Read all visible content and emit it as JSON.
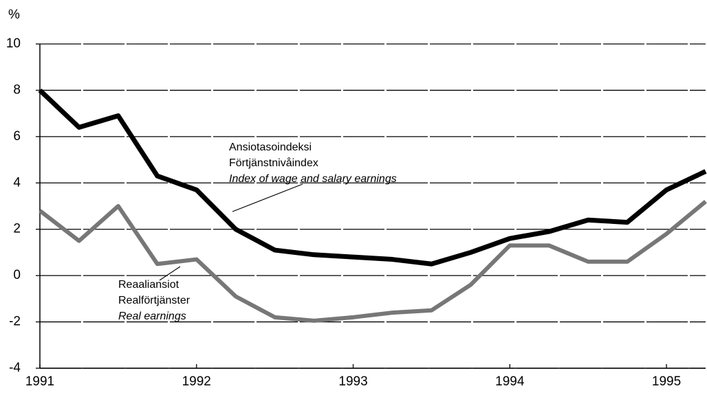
{
  "chart_data": {
    "type": "line",
    "y_label": "%",
    "x": [
      1991,
      1991.25,
      1991.5,
      1991.75,
      1992,
      1992.25,
      1992.5,
      1992.75,
      1993,
      1993.25,
      1993.5,
      1993.75,
      1994,
      1994.25,
      1994.5,
      1994.75,
      1995,
      1995.25
    ],
    "series": [
      {
        "name": [
          "Ansiotasoindeksi",
          "Förtjänstnivåindex",
          "Index of wage and salary earnings"
        ],
        "color": "#000000",
        "values": [
          8.0,
          6.4,
          6.9,
          4.3,
          3.7,
          2.0,
          1.1,
          0.9,
          0.8,
          0.7,
          0.5,
          1.0,
          1.6,
          1.9,
          2.4,
          2.3,
          3.7,
          4.5
        ]
      },
      {
        "name": [
          "Reaaliansiot",
          "Realförtjänster",
          "Real earnings"
        ],
        "color": "#777777",
        "values": [
          2.8,
          1.5,
          3.0,
          0.5,
          0.7,
          -0.9,
          -1.8,
          -1.95,
          -1.8,
          -1.6,
          -1.5,
          -0.4,
          1.3,
          1.3,
          0.6,
          0.6,
          1.8,
          3.2
        ]
      }
    ],
    "xlim": [
      1991,
      1995.25
    ],
    "xticks": [
      1991,
      1992,
      1993,
      1994,
      1995
    ],
    "ylim": [
      -4,
      10
    ],
    "yticks": [
      -4,
      -2,
      0,
      2,
      4,
      6,
      8,
      10
    ],
    "grid": true
  }
}
